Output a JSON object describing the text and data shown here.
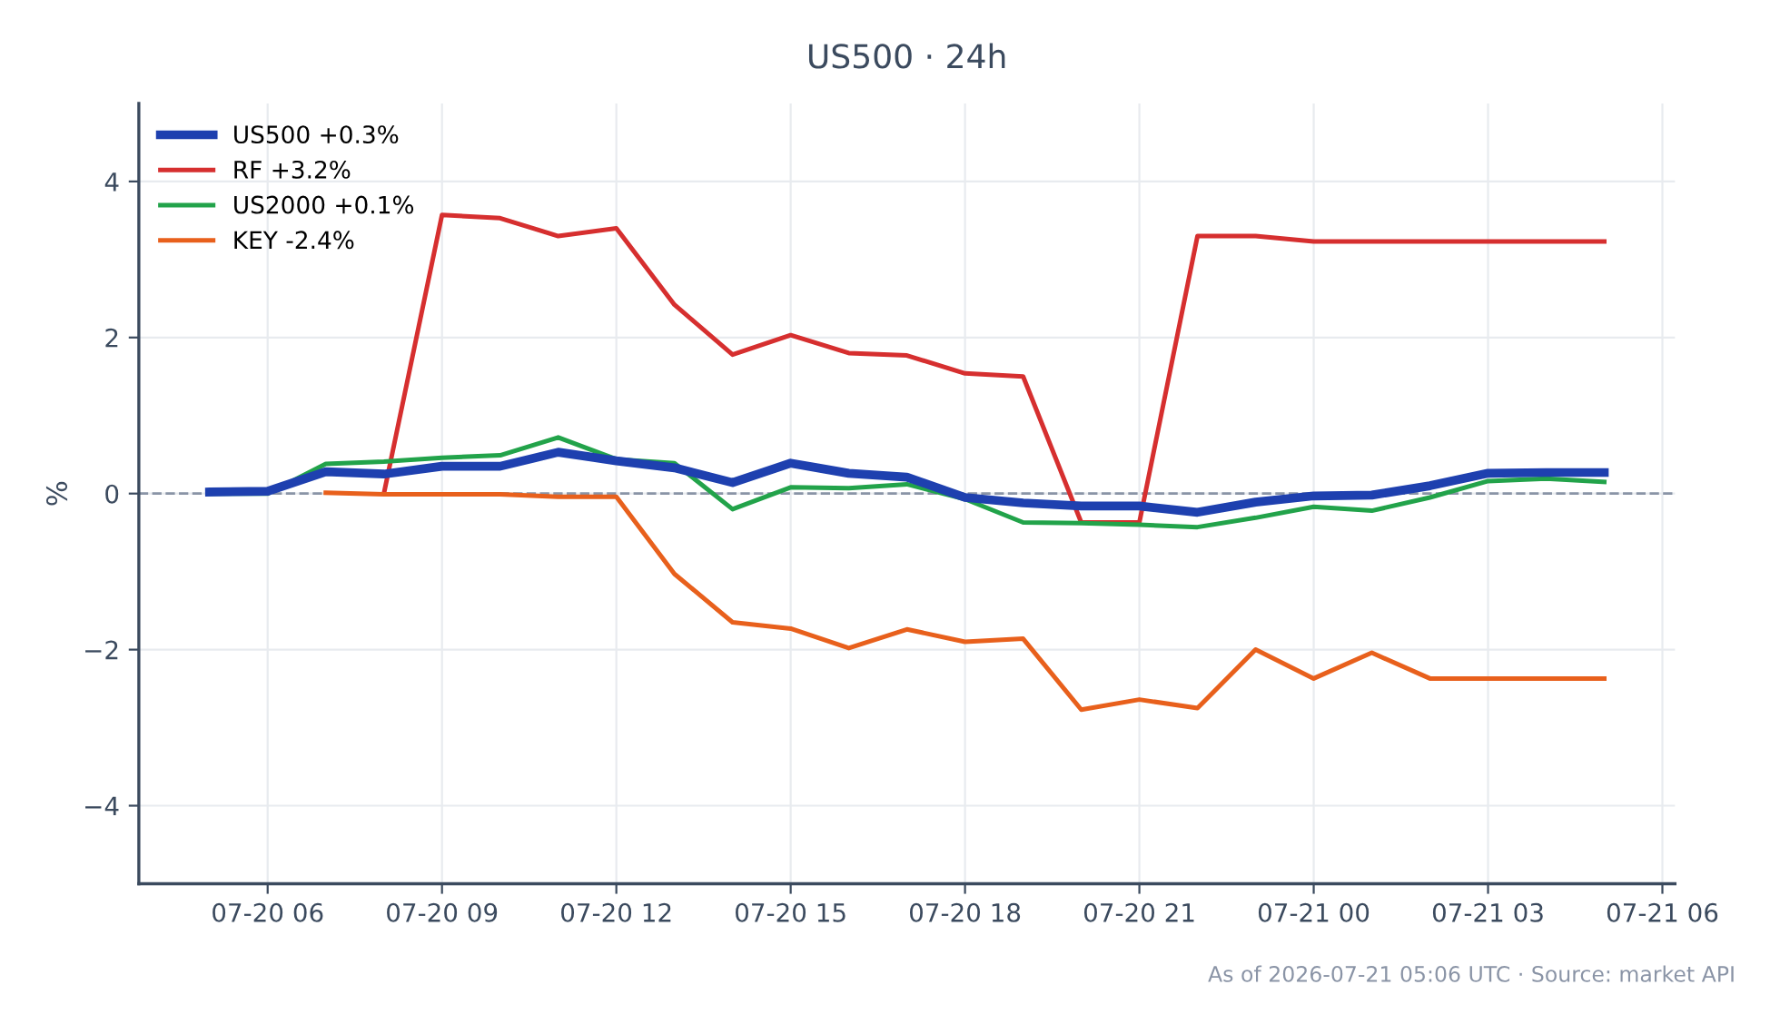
{
  "chart_data": {
    "type": "line",
    "title": "US500 · 24h",
    "ylabel": "%",
    "annotations": [
      "As of 2026-07-21 05:06 UTC · Source: market API"
    ],
    "x": [
      "2026-07-20T05:00",
      "2026-07-20T06:00",
      "2026-07-20T07:00",
      "2026-07-20T08:00",
      "2026-07-20T09:00",
      "2026-07-20T10:00",
      "2026-07-20T11:00",
      "2026-07-20T12:00",
      "2026-07-20T13:00",
      "2026-07-20T14:00",
      "2026-07-20T15:00",
      "2026-07-20T16:00",
      "2026-07-20T17:00",
      "2026-07-20T18:00",
      "2026-07-20T19:00",
      "2026-07-20T20:00",
      "2026-07-20T21:00",
      "2026-07-20T22:00",
      "2026-07-20T23:00",
      "2026-07-21T00:00",
      "2026-07-21T01:00",
      "2026-07-21T02:00",
      "2026-07-21T03:00",
      "2026-07-21T04:00",
      "2026-07-21T05:00"
    ],
    "series": [
      {
        "name": "US500 +0.3%",
        "color": "#1e40af",
        "values": [
          0.02,
          0.03,
          0.28,
          0.25,
          0.35,
          0.35,
          0.53,
          0.42,
          0.33,
          0.14,
          0.39,
          0.26,
          0.21,
          -0.05,
          -0.12,
          -0.16,
          -0.16,
          -0.24,
          -0.11,
          -0.03,
          -0.02,
          0.1,
          0.26,
          0.27,
          0.27
        ]
      },
      {
        "name": "RF +3.2%",
        "color": "#d62f2f",
        "values": [
          null,
          null,
          null,
          0.0,
          3.57,
          3.53,
          3.3,
          3.4,
          2.42,
          1.78,
          2.03,
          1.8,
          1.77,
          1.54,
          1.5,
          -0.37,
          -0.37,
          3.3,
          3.3,
          3.23,
          3.23,
          3.23,
          3.23,
          3.23,
          3.23
        ]
      },
      {
        "name": "US2000 +0.1%",
        "color": "#22a34a",
        "values": [
          0.0,
          0.0,
          0.38,
          0.41,
          0.46,
          0.49,
          0.72,
          0.44,
          0.39,
          -0.2,
          0.08,
          0.07,
          0.12,
          -0.07,
          -0.37,
          -0.38,
          -0.4,
          -0.43,
          -0.31,
          -0.17,
          -0.22,
          -0.05,
          0.16,
          0.19,
          0.15
        ]
      },
      {
        "name": "KEY -2.4%",
        "color": "#e8601c",
        "values": [
          null,
          null,
          0.01,
          -0.01,
          -0.01,
          -0.01,
          -0.04,
          -0.04,
          -1.03,
          -1.65,
          -1.73,
          -1.98,
          -1.74,
          -1.9,
          -1.86,
          -2.77,
          -2.64,
          -2.75,
          -2.0,
          -2.37,
          -2.04,
          -2.37,
          -2.37,
          -2.37,
          -2.37
        ]
      }
    ],
    "xlim": [
      "2026-07-20T03:47",
      "2026-07-21T06:13"
    ],
    "xticks": [
      {
        "value": "2026-07-20T06:00",
        "label": "07-20 06"
      },
      {
        "value": "2026-07-20T09:00",
        "label": "07-20 09"
      },
      {
        "value": "2026-07-20T12:00",
        "label": "07-20 12"
      },
      {
        "value": "2026-07-20T15:00",
        "label": "07-20 15"
      },
      {
        "value": "2026-07-20T18:00",
        "label": "07-20 18"
      },
      {
        "value": "2026-07-20T21:00",
        "label": "07-20 21"
      },
      {
        "value": "2026-07-21T00:00",
        "label": "07-21 00"
      },
      {
        "value": "2026-07-21T03:00",
        "label": "07-21 03"
      },
      {
        "value": "2026-07-21T06:00",
        "label": "07-21 06"
      }
    ],
    "ylim": [
      -5,
      5
    ],
    "yticks": [
      {
        "value": -4,
        "label": "−4"
      },
      {
        "value": -2,
        "label": "−2"
      },
      0,
      2,
      4
    ],
    "ref_lines": [
      {
        "axis": "y",
        "value": 0,
        "color": "#8a94a6",
        "line_style": "dashed"
      }
    ],
    "grid": true,
    "legend": "top left",
    "marker": "none",
    "line_style": "solid"
  }
}
